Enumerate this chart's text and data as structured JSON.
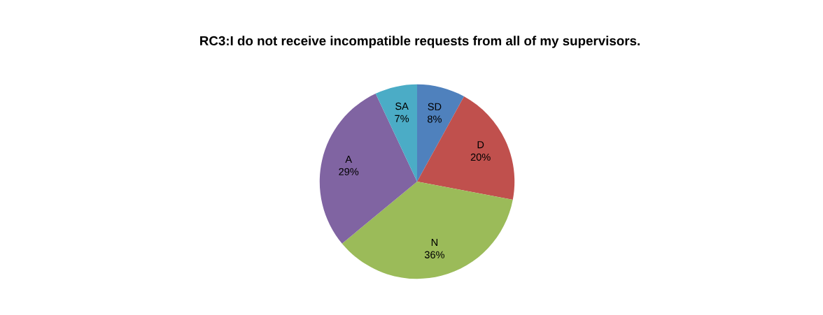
{
  "chart_data": {
    "type": "pie",
    "title": "RC3:I do not receive incompatible requests from all of my supervisors.",
    "categories": [
      "SD",
      "D",
      "N",
      "A",
      "SA"
    ],
    "values": [
      8,
      20,
      36,
      29,
      7
    ],
    "value_labels": [
      "8%",
      "20%",
      "36%",
      "29%",
      "7%"
    ],
    "colors": [
      "#4f81bd",
      "#c0504d",
      "#9bbb59",
      "#8064a2",
      "#4bacc6"
    ],
    "legend": false
  }
}
